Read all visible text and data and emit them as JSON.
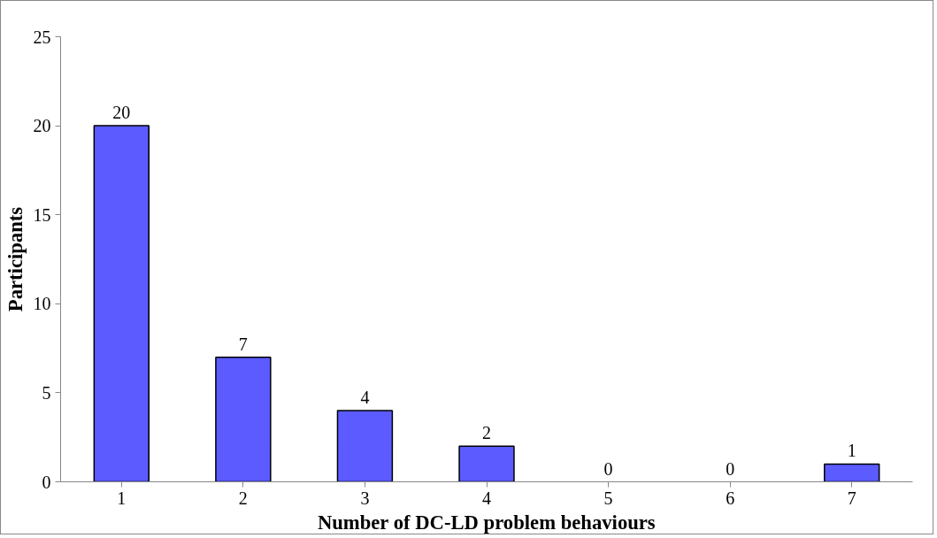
{
  "chart_data": {
    "type": "bar",
    "xlabel": "Number of DC-LD problem behaviours",
    "ylabel": "Participants",
    "categories": [
      "1",
      "2",
      "3",
      "4",
      "5",
      "6",
      "7"
    ],
    "values": [
      20,
      7,
      4,
      2,
      0,
      0,
      1
    ],
    "color": "#5b5bff",
    "ylim": [
      0,
      25
    ],
    "yticks": [
      0,
      5,
      10,
      15,
      20,
      25
    ],
    "grid": false,
    "data_labels": true
  }
}
